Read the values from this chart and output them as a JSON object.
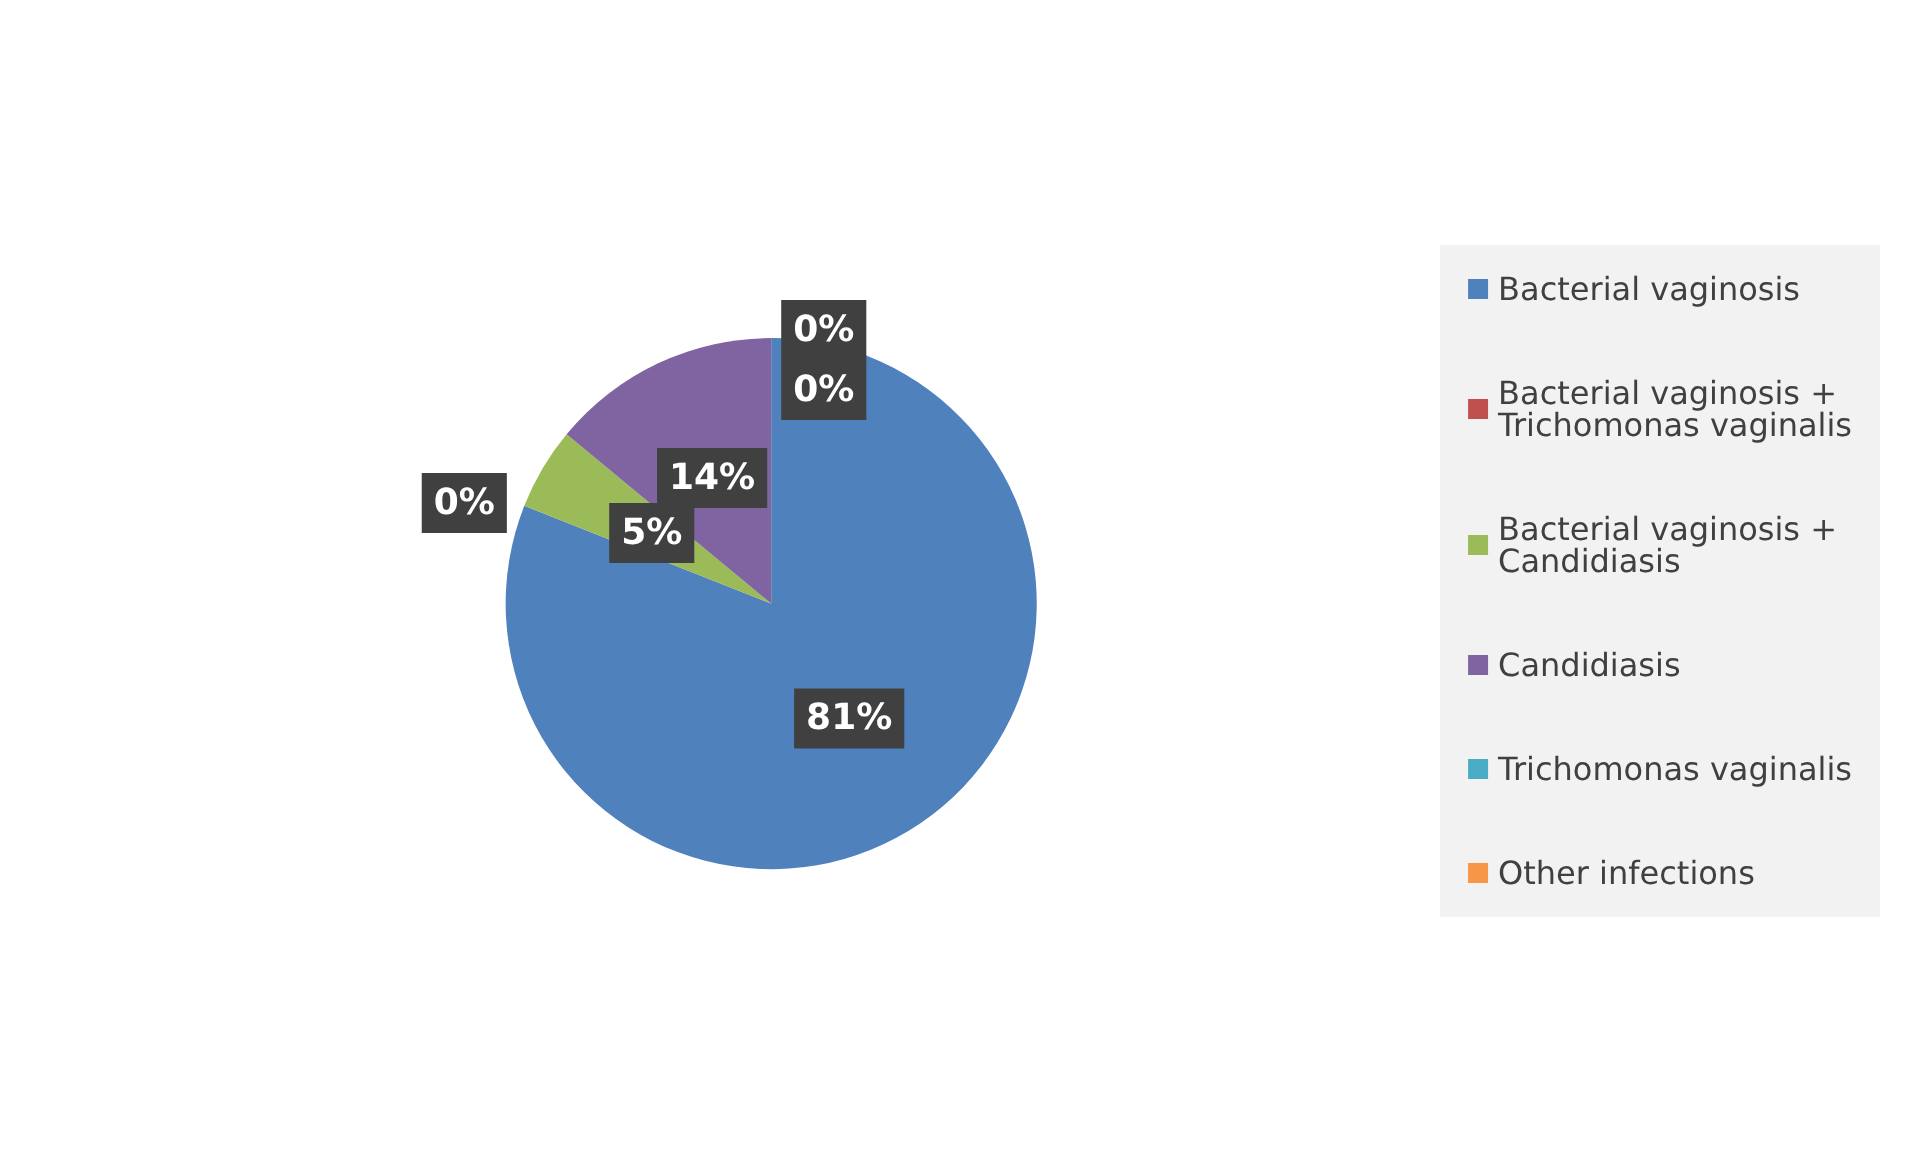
{
  "chart_data": {
    "type": "pie",
    "categories": [
      "Bacterial vaginosis",
      "Bacterial vaginosis + Trichomonas vaginalis",
      "Bacterial vaginosis + Candidiasis",
      "Candidiasis",
      "Trichomonas vaginalis",
      "Other infections"
    ],
    "values": [
      81,
      0,
      5,
      14,
      0,
      0
    ],
    "colors": [
      "#4f81bd",
      "#c0504d",
      "#9bbb59",
      "#8064a2",
      "#4bacc6",
      "#f79646"
    ],
    "value_labels": [
      "81%",
      "0%",
      "5%",
      "14%",
      "0%",
      "0%"
    ],
    "legend": "right"
  }
}
